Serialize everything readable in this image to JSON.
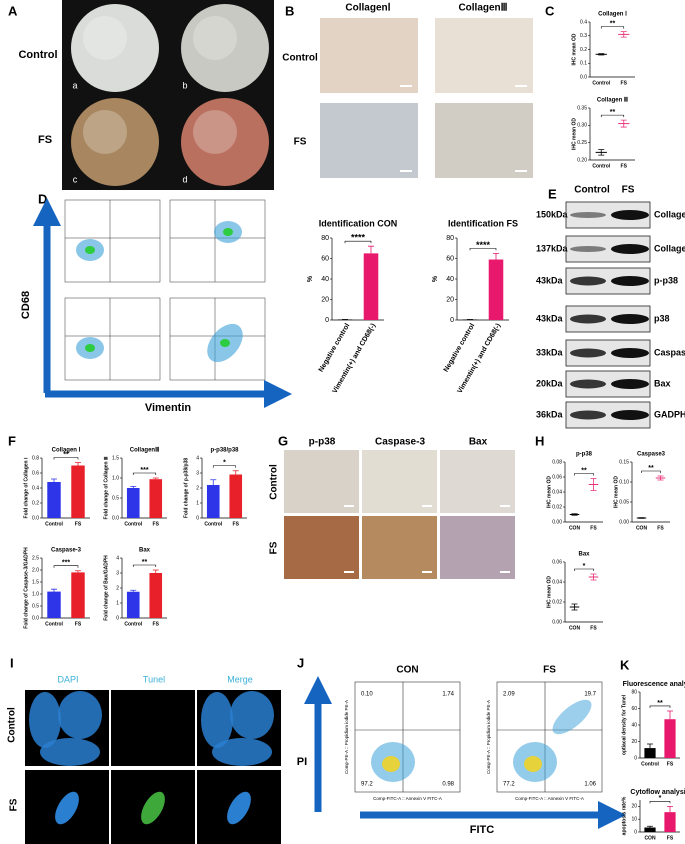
{
  "panels": {
    "A": {
      "label": "A",
      "rows": [
        "Control",
        "FS"
      ],
      "images": [
        "a",
        "b",
        "c",
        "d"
      ]
    },
    "B": {
      "label": "B",
      "columns": [
        "CollagenⅠ",
        "CollagenⅢ"
      ],
      "rows": [
        "Control",
        "FS"
      ]
    },
    "C": {
      "label": "C"
    },
    "D": {
      "label": "D",
      "y_axis": "CD68",
      "x_axis": "Vimentin"
    },
    "E": {
      "label": "E",
      "columns": [
        "Control",
        "FS"
      ],
      "blots": [
        {
          "size": "150kDa",
          "protein": "Collagen I"
        },
        {
          "size": "137kDa",
          "protein": "Collagen III"
        },
        {
          "size": "43kDa",
          "protein": "p-p38"
        },
        {
          "size": "43kDa",
          "protein": "p38"
        },
        {
          "size": "33kDa",
          "protein": "Caspase-3"
        },
        {
          "size": "20kDa",
          "protein": "Bax"
        },
        {
          "size": "36kDa",
          "protein": "GADPH"
        }
      ]
    },
    "F": {
      "label": "F"
    },
    "G": {
      "label": "G",
      "columns": [
        "p-p38",
        "Caspase-3",
        "Bax"
      ],
      "rows": [
        "Control",
        "FS"
      ]
    },
    "H": {
      "label": "H"
    },
    "I": {
      "label": "I",
      "columns": [
        "DAPI",
        "Tunel",
        "Merge"
      ],
      "rows": [
        "Control",
        "FS"
      ]
    },
    "J": {
      "label": "J",
      "y_axis": "PI",
      "x_axis": "FITC",
      "x_label": "Comp-FITC-A :: Annexin V FITC-A",
      "y_label": "Comp-PE-A :: Propidium iodide PE-A",
      "plots": [
        {
          "title": "CON",
          "quadrants": [
            "0.10",
            "1.74",
            "97.2",
            "0.98"
          ]
        },
        {
          "title": "FS",
          "quadrants": [
            "2.09",
            "19.7",
            "77.2",
            "1.06"
          ]
        }
      ]
    },
    "K": {
      "label": "K"
    }
  },
  "chart_data": [
    {
      "type": "dot",
      "title": "Collagen Ⅰ",
      "ylabel": "IHC mean OD",
      "categories": [
        "Control",
        "FS"
      ],
      "values": [
        0.165,
        0.31
      ],
      "errors": [
        0.005,
        0.02
      ],
      "colors": [
        "#000000",
        "#e8307a"
      ],
      "ylim": [
        0,
        0.4
      ],
      "yticks": [
        {
          "value": 0,
          "label": "0.0"
        },
        0.1,
        0.2,
        0.3,
        0.4
      ],
      "significance": "**"
    },
    {
      "type": "dot",
      "title": "Collagen Ⅲ",
      "ylabel": "IHC mean OD",
      "categories": [
        "Control",
        "FS"
      ],
      "values": [
        0.222,
        0.305
      ],
      "errors": [
        0.008,
        0.01
      ],
      "colors": [
        "#000000",
        "#e8307a"
      ],
      "ylim": [
        0.2,
        0.35
      ],
      "yticks": [
        {
          "value": 0.2,
          "label": "0.20"
        },
        0.25,
        {
          "value": 0.3,
          "label": "0.30"
        },
        0.35
      ],
      "significance": "**"
    },
    {
      "type": "bar",
      "title": "Identification CON",
      "ylabel": "%",
      "categories": [
        "Negative control",
        "Vimentin(+) and CD68(-)"
      ],
      "values": [
        0.5,
        65
      ],
      "errors": [
        0,
        7
      ],
      "colors": [
        "#000000",
        "#e8186c"
      ],
      "ylim": [
        0,
        80
      ],
      "yticks": [
        0,
        20,
        40,
        60,
        80
      ],
      "significance": "****"
    },
    {
      "type": "bar",
      "title": "Identification FS",
      "ylabel": "%",
      "categories": [
        "Negative control",
        "Vimentin(+) and CD68(-)"
      ],
      "values": [
        0.5,
        59
      ],
      "errors": [
        0,
        6
      ],
      "colors": [
        "#000000",
        "#e8186c"
      ],
      "ylim": [
        0,
        80
      ],
      "yticks": [
        0,
        20,
        40,
        60,
        80
      ],
      "significance": "****"
    },
    {
      "type": "bar",
      "title": "Collagen Ⅰ",
      "ylabel": "Fold change of Collagen Ⅰ",
      "categories": [
        "Control",
        "FS"
      ],
      "values": [
        0.48,
        0.7
      ],
      "errors": [
        0.04,
        0.04
      ],
      "colors": [
        "#2e35e8",
        "#e8202a"
      ],
      "ylim": [
        0,
        0.8
      ],
      "yticks": [
        {
          "value": 0,
          "label": "0.0"
        },
        0.2,
        0.4,
        0.6,
        0.8
      ],
      "significance": "**"
    },
    {
      "type": "bar",
      "title": "CollagenⅢ",
      "ylabel": "Fold change of Collagen Ⅲ",
      "categories": [
        "Control",
        "FS"
      ],
      "values": [
        0.75,
        0.97
      ],
      "errors": [
        0.04,
        0.03
      ],
      "colors": [
        "#2e35e8",
        "#e8202a"
      ],
      "ylim": [
        0,
        1.5
      ],
      "yticks": [
        {
          "value": 0,
          "label": "0.0"
        },
        0.5,
        {
          "value": 1,
          "label": "1.0"
        },
        1.5
      ],
      "significance": "***"
    },
    {
      "type": "bar",
      "title": "p-p38/p38",
      "ylabel": "Fold change of p-p38/p38",
      "categories": [
        "Control",
        "FS"
      ],
      "values": [
        2.2,
        2.9
      ],
      "errors": [
        0.35,
        0.25
      ],
      "colors": [
        "#2e35e8",
        "#e8202a"
      ],
      "ylim": [
        0,
        4
      ],
      "yticks": [
        0,
        1,
        2,
        3,
        4
      ],
      "significance": "*"
    },
    {
      "type": "bar",
      "title": "Caspase-3",
      "ylabel": "Fold change of Caspase-3/GADPH",
      "categories": [
        "Control",
        "FS"
      ],
      "values": [
        1.1,
        1.9
      ],
      "errors": [
        0.1,
        0.07
      ],
      "colors": [
        "#2e35e8",
        "#e8202a"
      ],
      "ylim": [
        0,
        2.5
      ],
      "yticks": [
        {
          "value": 0,
          "label": "0.0"
        },
        0.5,
        {
          "value": 1,
          "label": "1.0"
        },
        1.5,
        {
          "value": 2,
          "label": "2.0"
        },
        2.5
      ],
      "significance": "***"
    },
    {
      "type": "bar",
      "title": "Bax",
      "ylabel": "Fold change of Bax/GADPH",
      "categories": [
        "Control",
        "FS"
      ],
      "values": [
        1.75,
        3.0
      ],
      "errors": [
        0.1,
        0.2
      ],
      "colors": [
        "#2e35e8",
        "#e8202a"
      ],
      "ylim": [
        0,
        4
      ],
      "yticks": [
        0,
        1,
        2,
        3,
        4
      ],
      "significance": "**"
    },
    {
      "type": "dot",
      "title": "p-p38",
      "ylabel": "IHC mean OD",
      "categories": [
        "CON",
        "FS"
      ],
      "values": [
        0.01,
        0.05
      ],
      "errors": [
        0.001,
        0.008
      ],
      "colors": [
        "#000000",
        "#e8307a"
      ],
      "ylim": [
        0,
        0.08
      ],
      "yticks": [
        {
          "value": 0,
          "label": "0.00"
        },
        0.02,
        0.04,
        0.06,
        0.08
      ],
      "significance": "**"
    },
    {
      "type": "dot",
      "title": "Caspase3",
      "ylabel": "IHC mean OD",
      "categories": [
        "CON",
        "FS"
      ],
      "values": [
        0.01,
        0.11
      ],
      "errors": [
        0.001,
        0.005
      ],
      "colors": [
        "#000000",
        "#e8307a"
      ],
      "ylim": [
        0,
        0.15
      ],
      "yticks": [
        {
          "value": 0,
          "label": "0.00"
        },
        0.05,
        {
          "value": 0.1,
          "label": "0.10"
        },
        0.15
      ],
      "significance": "**"
    },
    {
      "type": "dot",
      "title": "Bax",
      "ylabel": "IHC mean OD",
      "categories": [
        "CON",
        "FS"
      ],
      "values": [
        0.015,
        0.045
      ],
      "errors": [
        0.003,
        0.003
      ],
      "colors": [
        "#000000",
        "#e8307a"
      ],
      "ylim": [
        0,
        0.06
      ],
      "yticks": [
        {
          "value": 0,
          "label": "0.00"
        },
        0.02,
        0.04,
        0.06
      ],
      "significance": "*"
    },
    {
      "type": "bar",
      "title": "Fluorescence analysis",
      "ylabel": "optiacal density for Tunel",
      "categories": [
        "Control",
        "FS"
      ],
      "values": [
        12,
        47
      ],
      "errors": [
        5,
        10
      ],
      "colors": [
        "#000000",
        "#e8186c"
      ],
      "ylim": [
        0,
        80
      ],
      "yticks": [
        0,
        20,
        40,
        60,
        80
      ],
      "significance": "**"
    },
    {
      "type": "bar",
      "title": "Cytoflow analysis",
      "ylabel": "apoptosis rate%",
      "categories": [
        "CON",
        "FS"
      ],
      "values": [
        3.5,
        15.5
      ],
      "errors": [
        1,
        4.5
      ],
      "colors": [
        "#000000",
        "#e8186c"
      ],
      "ylim": [
        0,
        25
      ],
      "yticks": [
        0,
        10,
        20
      ],
      "significance": "*"
    }
  ]
}
